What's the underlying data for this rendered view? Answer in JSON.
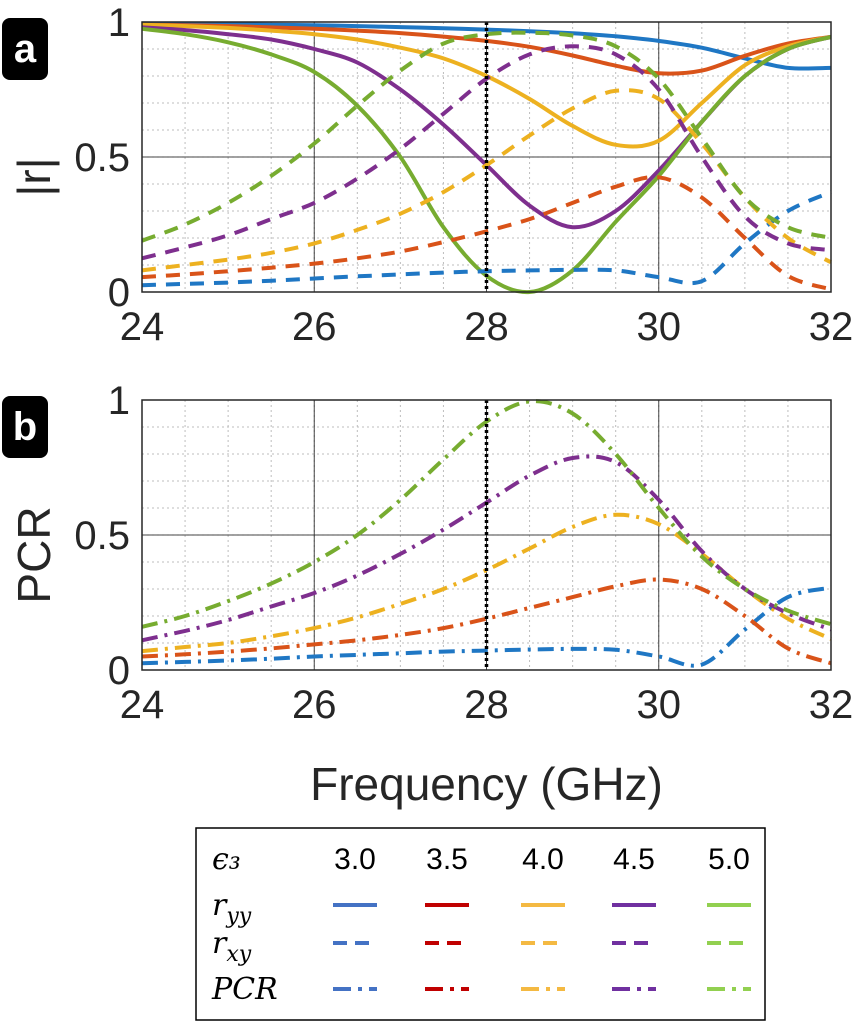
{
  "chart_data": [
    {
      "panel_label": "a",
      "type": "line",
      "ylabel": "|r|",
      "xlabel": "",
      "xlim": [
        24,
        32
      ],
      "ylim": [
        0,
        1
      ],
      "x_ticks": [
        "24",
        "26",
        "28",
        "30",
        "32"
      ],
      "y_ticks": [
        "0",
        "0.5",
        "1"
      ],
      "grid": "major and minor",
      "marker_line_x": 28,
      "x": [
        24,
        24.5,
        25,
        25.5,
        26,
        26.5,
        27,
        27.5,
        28,
        28.5,
        29,
        29.5,
        30,
        30.5,
        31,
        31.5,
        32
      ],
      "series": [
        {
          "epsilon": "3.0",
          "component": "r_yy",
          "style": "solid",
          "color": "#1f77c4",
          "values": [
            0.995,
            0.993,
            0.992,
            0.99,
            0.988,
            0.985,
            0.981,
            0.977,
            0.972,
            0.966,
            0.958,
            0.947,
            0.93,
            0.905,
            0.865,
            0.83,
            0.83
          ]
        },
        {
          "epsilon": "3.5",
          "component": "r_yy",
          "style": "solid",
          "color": "#d95319",
          "values": [
            0.99,
            0.988,
            0.985,
            0.98,
            0.975,
            0.968,
            0.959,
            0.946,
            0.93,
            0.908,
            0.876,
            0.838,
            0.81,
            0.82,
            0.875,
            0.92,
            0.945
          ]
        },
        {
          "epsilon": "4.0",
          "component": "r_yy",
          "style": "solid",
          "color": "#edb120",
          "values": [
            0.99,
            0.985,
            0.978,
            0.968,
            0.955,
            0.935,
            0.905,
            0.865,
            0.8,
            0.715,
            0.615,
            0.545,
            0.56,
            0.7,
            0.84,
            0.91,
            0.945
          ]
        },
        {
          "epsilon": "4.5",
          "component": "r_yy",
          "style": "solid",
          "color": "#7e2f8e",
          "values": [
            0.98,
            0.97,
            0.955,
            0.935,
            0.9,
            0.85,
            0.75,
            0.62,
            0.47,
            0.32,
            0.24,
            0.3,
            0.45,
            0.63,
            0.8,
            0.9,
            0.945
          ]
        },
        {
          "epsilon": "5.0",
          "component": "r_yy",
          "style": "solid",
          "color": "#77ac30",
          "values": [
            0.975,
            0.955,
            0.925,
            0.88,
            0.815,
            0.69,
            0.5,
            0.24,
            0.06,
            0.0,
            0.08,
            0.26,
            0.43,
            0.63,
            0.8,
            0.9,
            0.945
          ]
        },
        {
          "epsilon": "3.0",
          "component": "r_xy",
          "style": "dashed",
          "color": "#1f77c4",
          "values": [
            0.025,
            0.03,
            0.035,
            0.042,
            0.05,
            0.058,
            0.065,
            0.072,
            0.077,
            0.08,
            0.082,
            0.08,
            0.055,
            0.04,
            0.18,
            0.3,
            0.37
          ]
        },
        {
          "epsilon": "3.5",
          "component": "r_xy",
          "style": "dashed",
          "color": "#d95319",
          "values": [
            0.055,
            0.065,
            0.077,
            0.09,
            0.105,
            0.125,
            0.15,
            0.185,
            0.225,
            0.27,
            0.33,
            0.39,
            0.425,
            0.35,
            0.2,
            0.06,
            0.01
          ]
        },
        {
          "epsilon": "4.0",
          "component": "r_xy",
          "style": "dashed",
          "color": "#edb120",
          "values": [
            0.08,
            0.1,
            0.12,
            0.145,
            0.18,
            0.23,
            0.29,
            0.37,
            0.47,
            0.58,
            0.68,
            0.745,
            0.715,
            0.55,
            0.35,
            0.2,
            0.11
          ]
        },
        {
          "epsilon": "4.5",
          "component": "r_xy",
          "style": "dashed",
          "color": "#7e2f8e",
          "values": [
            0.125,
            0.165,
            0.21,
            0.27,
            0.33,
            0.42,
            0.53,
            0.66,
            0.79,
            0.88,
            0.91,
            0.88,
            0.75,
            0.5,
            0.28,
            0.18,
            0.155
          ]
        },
        {
          "epsilon": "5.0",
          "component": "r_xy",
          "style": "dashed",
          "color": "#77ac30",
          "values": [
            0.19,
            0.25,
            0.33,
            0.43,
            0.55,
            0.69,
            0.82,
            0.92,
            0.955,
            0.96,
            0.95,
            0.91,
            0.79,
            0.57,
            0.35,
            0.24,
            0.2
          ]
        }
      ]
    },
    {
      "panel_label": "b",
      "type": "line",
      "ylabel": "PCR",
      "xlabel": "Frequency (GHz)",
      "xlim": [
        24,
        32
      ],
      "ylim": [
        0,
        1
      ],
      "x_ticks": [
        "24",
        "26",
        "28",
        "30",
        "32"
      ],
      "y_ticks": [
        "0",
        "0.5",
        "1"
      ],
      "grid": "major and minor",
      "marker_line_x": 28,
      "x": [
        24,
        24.5,
        25,
        25.5,
        26,
        26.5,
        27,
        27.5,
        28,
        28.5,
        29,
        29.5,
        30,
        30.5,
        31,
        31.5,
        32
      ],
      "series": [
        {
          "epsilon": "3.0",
          "component": "PCR",
          "style": "dashdot",
          "color": "#1f77c4",
          "values": [
            0.025,
            0.03,
            0.035,
            0.042,
            0.05,
            0.056,
            0.062,
            0.068,
            0.072,
            0.076,
            0.078,
            0.075,
            0.05,
            0.02,
            0.15,
            0.27,
            0.305
          ]
        },
        {
          "epsilon": "3.5",
          "component": "PCR",
          "style": "dashdot",
          "color": "#d95319",
          "values": [
            0.05,
            0.058,
            0.068,
            0.08,
            0.095,
            0.11,
            0.13,
            0.155,
            0.19,
            0.23,
            0.27,
            0.31,
            0.335,
            0.3,
            0.2,
            0.08,
            0.025
          ]
        },
        {
          "epsilon": "4.0",
          "component": "PCR",
          "style": "dashdot",
          "color": "#edb120",
          "values": [
            0.07,
            0.085,
            0.1,
            0.125,
            0.155,
            0.195,
            0.245,
            0.3,
            0.37,
            0.45,
            0.53,
            0.575,
            0.54,
            0.43,
            0.3,
            0.19,
            0.115
          ]
        },
        {
          "epsilon": "4.5",
          "component": "PCR",
          "style": "dashdot",
          "color": "#7e2f8e",
          "values": [
            0.11,
            0.145,
            0.185,
            0.235,
            0.285,
            0.35,
            0.43,
            0.52,
            0.62,
            0.72,
            0.785,
            0.77,
            0.63,
            0.44,
            0.3,
            0.21,
            0.15
          ]
        },
        {
          "epsilon": "5.0",
          "component": "PCR",
          "style": "dashdot",
          "color": "#77ac30",
          "values": [
            0.16,
            0.2,
            0.255,
            0.32,
            0.4,
            0.5,
            0.63,
            0.78,
            0.92,
            0.995,
            0.95,
            0.8,
            0.6,
            0.42,
            0.3,
            0.22,
            0.17
          ]
        }
      ]
    }
  ],
  "legend": {
    "header_label": "ϵ₃",
    "columns": [
      {
        "value": "3.0",
        "color": "#4472c4"
      },
      {
        "value": "3.5",
        "color": "#c00000"
      },
      {
        "value": "4.0",
        "color": "#f4b942"
      },
      {
        "value": "4.5",
        "color": "#7030a0"
      },
      {
        "value": "5.0",
        "color": "#92d050"
      }
    ],
    "rows": [
      {
        "label": "r",
        "sub": "yy",
        "style": "solid"
      },
      {
        "label": "r",
        "sub": "xy",
        "style": "dashed"
      },
      {
        "label": "PCR",
        "sub": "",
        "style": "dashdot"
      }
    ]
  }
}
